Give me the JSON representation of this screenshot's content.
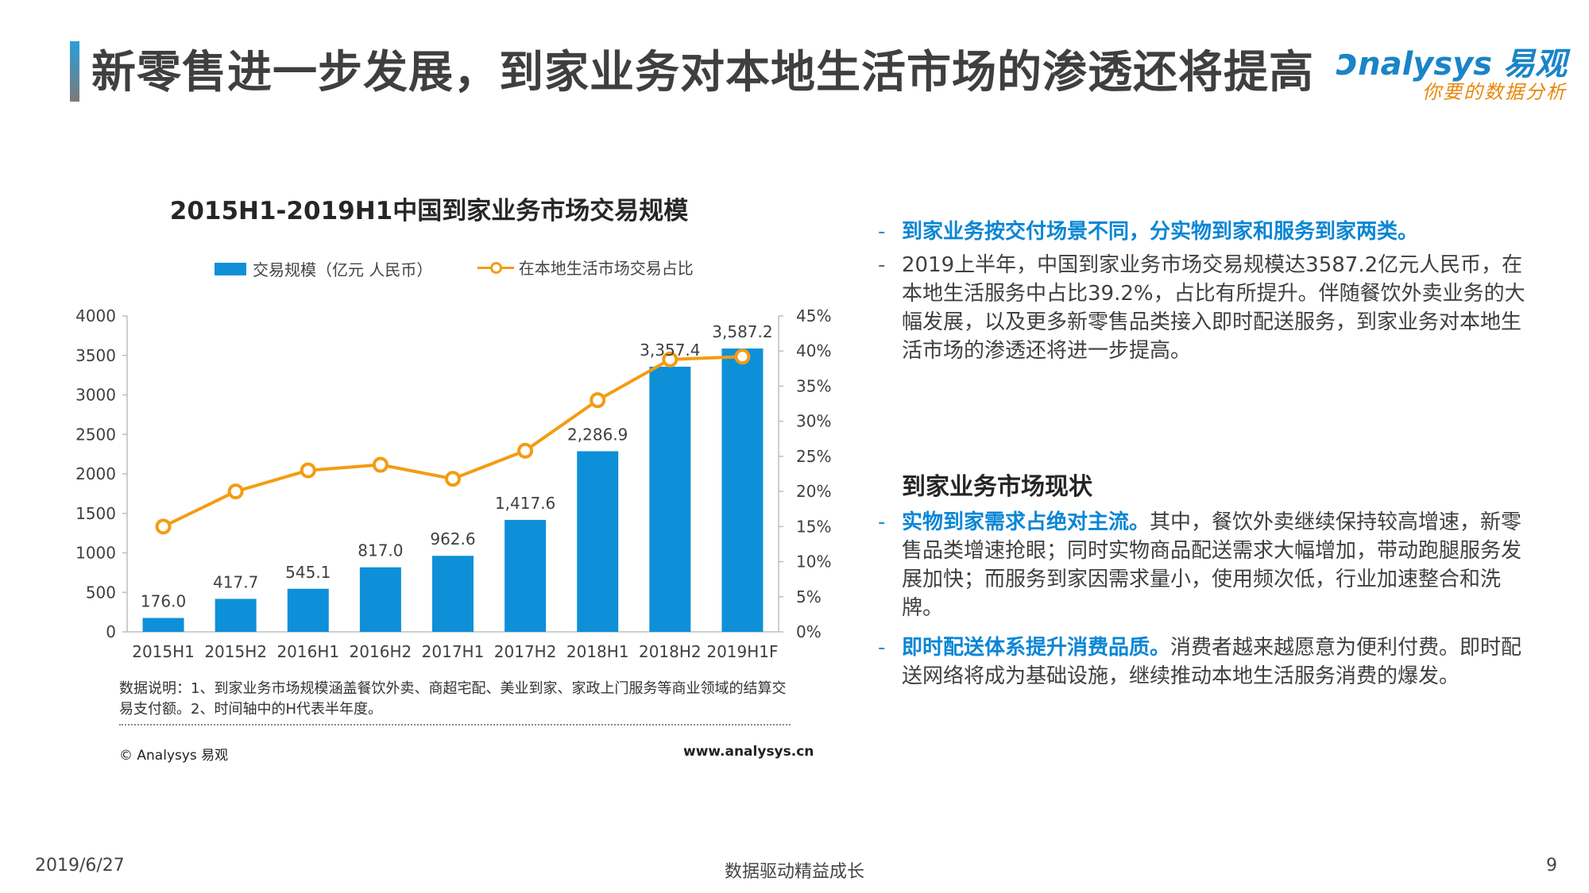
{
  "page": {
    "title": "新零售进一步发展，到家业务对本地生活市场的渗透还将提高",
    "logo_en": "nalysys 易观",
    "logo_cn": "你要的数据分析"
  },
  "chart_data": {
    "type": "bar",
    "title": "2015H1-2019H1中国到家业务市场交易规模",
    "categories": [
      "2015H1",
      "2015H2",
      "2016H1",
      "2016H2",
      "2017H1",
      "2017H2",
      "2018H1",
      "2018H2",
      "2019H1F"
    ],
    "series": [
      {
        "name": "交易规模（亿元 人民币）",
        "type": "bar",
        "axis": "left",
        "values": [
          176.0,
          417.7,
          545.1,
          817.0,
          962.6,
          1417.6,
          2286.9,
          3357.4,
          3587.2
        ],
        "labels": [
          "176.0",
          "417.7",
          "545.1",
          "817.0",
          "962.6",
          "1,417.6",
          "2,286.9",
          "3,357.4",
          "3,587.2"
        ]
      },
      {
        "name": "在本地生活市场交易占比",
        "type": "line",
        "axis": "right",
        "values": [
          15.0,
          20.0,
          23.0,
          23.8,
          21.8,
          25.8,
          33.0,
          38.8,
          39.2
        ]
      }
    ],
    "ylim_left": [
      0,
      4000
    ],
    "yticks_left": [
      "4000",
      "3500",
      "3000",
      "2500",
      "2000",
      "1500",
      "1000",
      "500",
      "0"
    ],
    "ylim_right": [
      0,
      45
    ],
    "yticks_right": [
      "45%",
      "40%",
      "35%",
      "30%",
      "25%",
      "20%",
      "15%",
      "10%",
      "5%",
      "0%"
    ],
    "legend_position": "top",
    "grid": false,
    "colors": {
      "bar": "#0e90d8",
      "line": "#f39c12"
    }
  },
  "chart_note": "数据说明：1、到家业务市场规模涵盖餐饮外卖、商超宅配、美业到家、家政上门服务等商业领域的结算交易支付额。2、时间轴中的H代表半年度。",
  "chart_footer": {
    "copyright": "© Analysys 易观",
    "site": "www.analysys.cn"
  },
  "right_panel": {
    "bullet1_highlight": "到家业务按交付场景不同，分实物到家和服务到家两类。",
    "bullet2_text": "2019上半年，中国到家业务市场交易规模达3587.2亿元人民币，在本地生活服务中占比39.2%，占比有所提升。伴随餐饮外卖业务的大幅发展，以及更多新零售品类接入即时配送服务，到家业务对本地生活市场的渗透还将进一步提高。",
    "section_title": "到家业务市场现状",
    "bullet3_highlight": "实物到家需求占绝对主流。",
    "bullet3_text": "其中，餐饮外卖继续保持较高增速，新零售品类增速抢眼；同时实物商品配送需求大幅增加，带动跑腿服务发展加快；而服务到家因需求量小，使用频次低，行业加速整合和洗牌。",
    "bullet4_highlight": "即时配送体系提升消费品质。",
    "bullet4_text": "消费者越来越愿意为便利付费。即时配送网络将成为基础设施，继续推动本地生活服务消费的爆发。",
    "dash": "-"
  },
  "footer": {
    "date": "2019/6/27",
    "slogan": "数据驱动精益成长",
    "page_number": "9"
  }
}
